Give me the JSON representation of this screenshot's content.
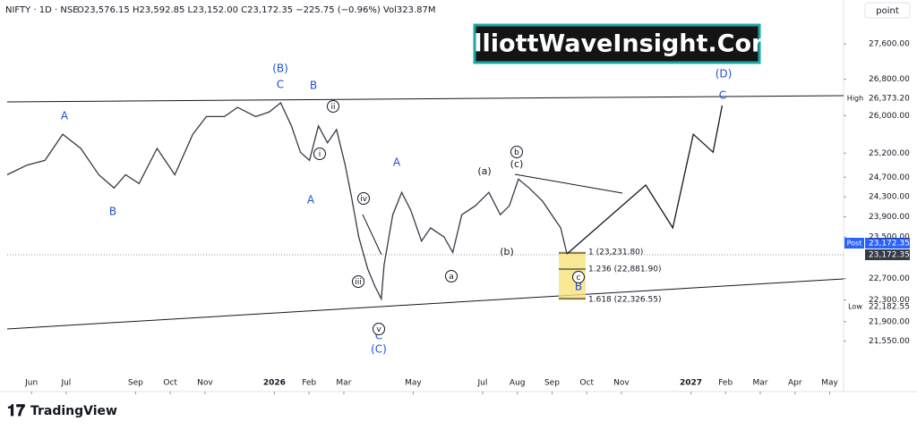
{
  "header": {
    "symbol": "NIFTY · 1D · NSE",
    "ohlc": "O23,576.15 H23,592.85 L23,152.00 C23,172.35 −225.75 (−0.96%) Vol323.87M",
    "scale_button": "point"
  },
  "banner": "ElliottWaveInsight.Com",
  "footer": {
    "logo": "TradingView"
  },
  "price_tags": {
    "high_label": "High",
    "high": "26,373.20",
    "post_label": "Post",
    "post": "23,172.35",
    "last": "23,172.35",
    "low_label": "Low",
    "low": "22,182.55"
  },
  "fib_levels": [
    "1 (23,231.80)",
    "1.236 (22,881.90)",
    "1.618 (22,326.55)"
  ],
  "wave_labels_blue": [
    "(B)",
    "C",
    "B",
    "A",
    "B",
    "A",
    "A",
    "(D)",
    "C",
    "B",
    "C",
    "(C)"
  ],
  "wave_labels_black": [
    "(a)",
    "(c)",
    "(b)"
  ],
  "circled_labels": [
    "ii",
    "i",
    "iv",
    "iii",
    "v",
    "b",
    "a",
    "c"
  ],
  "chart_data": {
    "type": "line",
    "log_scale": true,
    "xlim": [
      -0.7,
      23.4
    ],
    "ylim": [
      20940,
      28630
    ],
    "xticks": [
      {
        "value": 0,
        "label": "Jun"
      },
      {
        "value": 1,
        "label": "Jul"
      },
      {
        "value": 3,
        "label": "Sep"
      },
      {
        "value": 4,
        "label": "Oct"
      },
      {
        "value": 5,
        "label": "Nov"
      },
      {
        "value": 7,
        "label": "2026"
      },
      {
        "value": 8,
        "label": "Feb"
      },
      {
        "value": 9,
        "label": "Mar"
      },
      {
        "value": 11,
        "label": "May"
      },
      {
        "value": 13,
        "label": "Jul"
      },
      {
        "value": 14,
        "label": "Aug"
      },
      {
        "value": 15,
        "label": "Sep"
      },
      {
        "value": 16,
        "label": "Oct"
      },
      {
        "value": 17,
        "label": "Nov"
      },
      {
        "value": 19,
        "label": "2027"
      },
      {
        "value": 20,
        "label": "Feb"
      },
      {
        "value": 21,
        "label": "Mar"
      },
      {
        "value": 22,
        "label": "Apr"
      },
      {
        "value": 23,
        "label": "May"
      }
    ],
    "yticks": [
      {
        "value": 27600,
        "label": "27,600.00"
      },
      {
        "value": 26800,
        "label": "26,800.00"
      },
      {
        "value": 26000,
        "label": "26,000.00"
      },
      {
        "value": 25200,
        "label": "25,200.00"
      },
      {
        "value": 24700,
        "label": "24,700.00"
      },
      {
        "value": 24300,
        "label": "24,300.00"
      },
      {
        "value": 23900,
        "label": "23,900.00"
      },
      {
        "value": 23500,
        "label": "23,500.00"
      },
      {
        "value": 22700,
        "label": "22,700.00"
      },
      {
        "value": 22300,
        "label": "22,300.00"
      },
      {
        "value": 21900,
        "label": "21,900.00"
      },
      {
        "value": 21550,
        "label": "21,550.00"
      }
    ],
    "series": [
      {
        "color": "#363a45",
        "x": [
          -0.7,
          -0.13,
          0.39,
          0.9,
          1.42,
          1.94,
          2.38,
          2.71,
          3.1,
          3.62,
          4.13,
          4.65,
          5.04,
          5.56,
          5.94,
          6.46,
          6.85,
          7.18,
          7.49,
          7.75,
          8.01,
          8.27,
          8.53,
          8.79,
          9.04,
          9.22,
          9.43,
          9.69,
          9.9,
          10.08,
          10.16,
          10.41,
          10.67,
          10.93,
          11.24,
          11.5,
          11.89,
          12.14,
          12.4,
          12.79,
          13.18,
          13.51,
          13.77,
          14.03,
          14.34,
          14.73,
          14.99,
          15.25,
          15.43
        ],
        "values": [
          24750,
          24950,
          25050,
          25600,
          25300,
          24750,
          24480,
          24750,
          24570,
          25300,
          24750,
          25600,
          25980,
          25980,
          26180,
          25980,
          26080,
          26280,
          25780,
          25220,
          25050,
          25780,
          25420,
          25700,
          24950,
          24300,
          23500,
          22880,
          22550,
          22320,
          22960,
          23940,
          24390,
          24030,
          23420,
          23680,
          23500,
          23200,
          23940,
          24120,
          24390,
          23940,
          24120,
          24660,
          24480,
          24210,
          23940,
          23680,
          23172.35
        ]
      },
      {
        "color": "#131722",
        "x": [
          15.43,
          17.7,
          18.48,
          19.07,
          19.64,
          19.9
        ],
        "values": [
          23172.35,
          24540,
          23680,
          25600,
          25220,
          26220
        ]
      }
    ]
  }
}
